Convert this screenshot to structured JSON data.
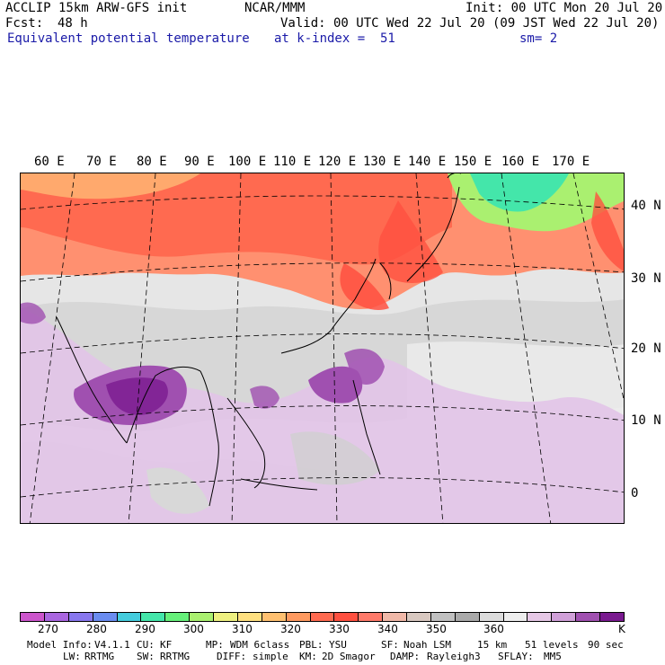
{
  "header": {
    "model": "ACCLIP 15km ARW-GFS init",
    "org": "NCAR/MMM",
    "init": "Init: 00 UTC Mon 20 Jul 20",
    "fcst_label": "Fcst:",
    "fcst_value": "48 h",
    "valid": "Valid: 00 UTC Wed 22 Jul 20 (09 JST Wed 22 Jul 20)",
    "field": "Equivalent potential temperature",
    "level": "at k-index =  51",
    "smoothing": "sm= 2"
  },
  "map": {
    "longitude_labels": [
      "60 E",
      "70 E",
      "80 E",
      "90 E",
      "100 E",
      "110 E",
      "120 E",
      "130 E",
      "140 E",
      "150 E",
      "160 E",
      "170 E"
    ],
    "latitude_labels": [
      "40 N",
      "30 N",
      "20 N",
      "10 N",
      "0"
    ]
  },
  "colorbar": {
    "unit": "K",
    "tick_labels": [
      "270",
      "280",
      "290",
      "300",
      "310",
      "320",
      "330",
      "340",
      "350",
      "360"
    ],
    "colors": [
      "#cc55cc",
      "#aa66e0",
      "#8877ee",
      "#6a8cf0",
      "#44ccdd",
      "#44e6aa",
      "#66f07a",
      "#aaf070",
      "#eef080",
      "#ffe080",
      "#ffc070",
      "#ff9a60",
      "#ff6a50",
      "#ff5040",
      "#ff7a6a",
      "#f0b8a8",
      "#d8c8c0",
      "#c0c0c0",
      "#aaaaaa",
      "#dcdcdc",
      "#eeeeee",
      "#e6c8e6",
      "#d0a0d8",
      "#a050b0",
      "#7a1a90"
    ]
  },
  "footer": {
    "line1": [
      {
        "k": "Model Info:",
        "v": "V4.1.1"
      },
      {
        "k": "CU:",
        "v": "KF"
      },
      {
        "k": "MP:",
        "v": "WDM 6class"
      },
      {
        "k": "PBL:",
        "v": "YSU"
      },
      {
        "k": "SF:",
        "v": "Noah LSM"
      },
      {
        "k": "",
        "v": "15 km"
      },
      {
        "k": "",
        "v": "51 levels"
      },
      {
        "k": "",
        "v": "90 sec"
      }
    ],
    "line2": [
      {
        "k": "LW:",
        "v": "RRTMG"
      },
      {
        "k": "SW:",
        "v": "RRTMG"
      },
      {
        "k": "DIFF:",
        "v": "simple"
      },
      {
        "k": "KM:",
        "v": "2D Smagor"
      },
      {
        "k": "DAMP:",
        "v": "Rayleigh3"
      },
      {
        "k": "SFLAY:",
        "v": "MM5"
      }
    ]
  }
}
